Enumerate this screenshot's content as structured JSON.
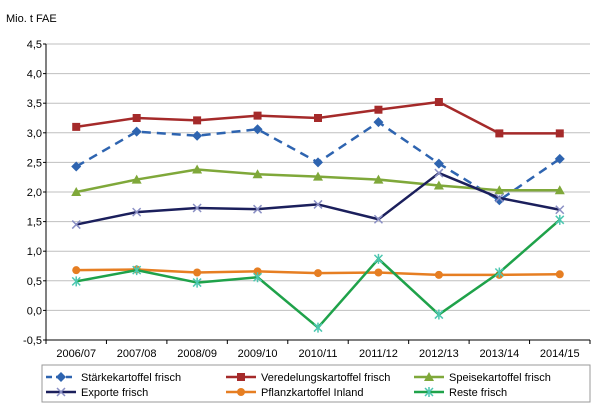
{
  "chart_data": {
    "type": "line",
    "ylabel": "Mio. t FAE",
    "ylim": [
      -0.5,
      4.5
    ],
    "yticks": [
      "-0,5",
      "0,0",
      "0,5",
      "1,0",
      "1,5",
      "2,0",
      "2,5",
      "3,0",
      "3,5",
      "4,0",
      "4,5"
    ],
    "categories": [
      "2006/07",
      "2007/08",
      "2008/09",
      "2009/10",
      "2010/11",
      "2011/12",
      "2012/13",
      "2013/14",
      "2014/15"
    ],
    "grid": true,
    "legend_position": "bottom",
    "series": [
      {
        "name": "Stärkekartoffel frisch",
        "color": "#2E64B0",
        "dash": true,
        "marker": "diamond",
        "values": [
          2.43,
          3.02,
          2.95,
          3.06,
          2.5,
          3.18,
          2.48,
          1.86,
          2.56
        ]
      },
      {
        "name": "Veredelungskartoffel frisch",
        "color": "#A52A2A",
        "dash": false,
        "marker": "square",
        "values": [
          3.1,
          3.25,
          3.21,
          3.29,
          3.25,
          3.39,
          3.52,
          2.99,
          2.99
        ]
      },
      {
        "name": "Speisekartoffel frisch",
        "color": "#7FA83A",
        "dash": false,
        "marker": "triangle",
        "values": [
          2.0,
          2.21,
          2.38,
          2.3,
          2.26,
          2.21,
          2.11,
          2.03,
          2.03
        ]
      },
      {
        "name": "Exporte frisch",
        "color": "#1B1F5C",
        "dash": false,
        "marker": "x",
        "values": [
          1.45,
          1.66,
          1.73,
          1.71,
          1.79,
          1.54,
          2.32,
          1.9,
          1.7
        ]
      },
      {
        "name": "Pflanzkartoffel Inland",
        "color": "#E67E22",
        "dash": false,
        "marker": "circle",
        "values": [
          0.68,
          0.69,
          0.64,
          0.66,
          0.63,
          0.64,
          0.6,
          0.6,
          0.61
        ]
      },
      {
        "name": "Reste frisch",
        "color": "#1FA24A",
        "dash": false,
        "marker": "star",
        "values": [
          0.49,
          0.68,
          0.47,
          0.56,
          -0.29,
          0.87,
          -0.07,
          0.64,
          1.53
        ]
      }
    ]
  }
}
